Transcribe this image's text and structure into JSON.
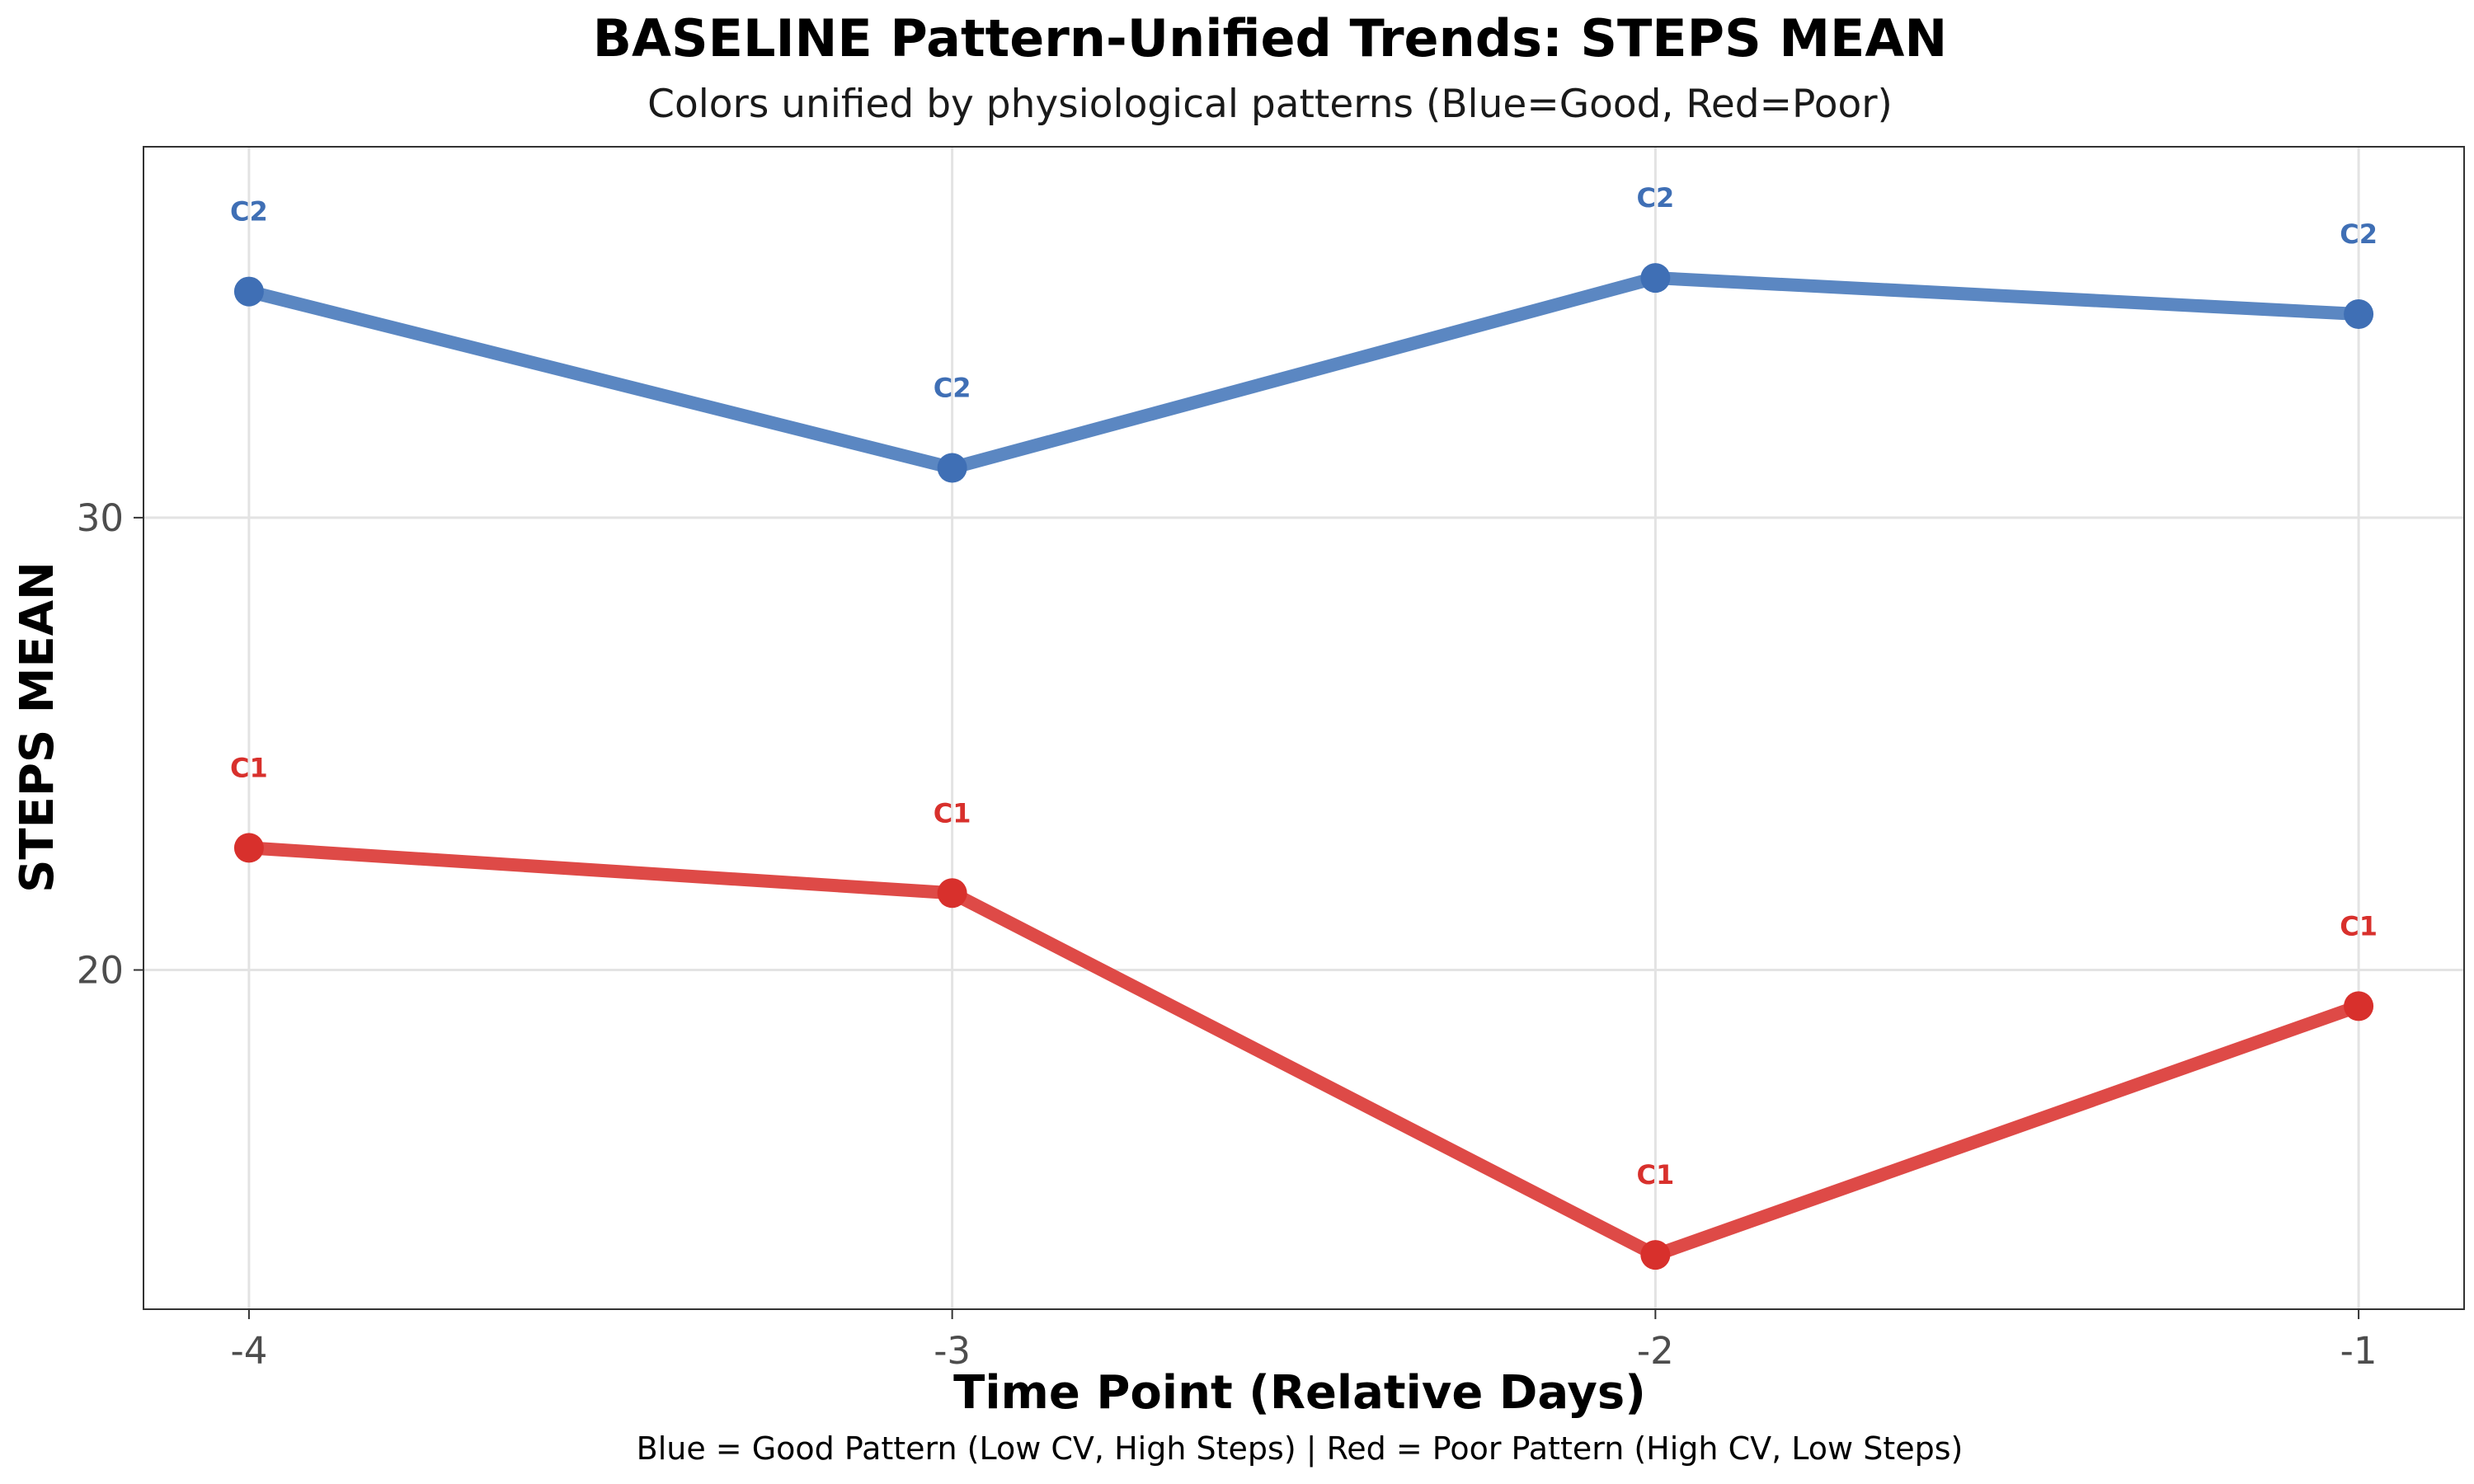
{
  "chart_data": {
    "type": "line",
    "title": "BASELINE Pattern-Unified Trends: STEPS MEAN",
    "subtitle": "Colors unified by physiological patterns (Blue=Good, Red=Poor)",
    "xlabel": "Time Point (Relative Days)",
    "ylabel": "STEPS MEAN",
    "caption": "Blue = Good Pattern (Low CV, High Steps) | Red = Poor Pattern (High CV, Low Steps)",
    "x": [
      -4,
      -3,
      -2,
      -1
    ],
    "x_tick_labels": [
      "-4",
      "-3",
      "-2",
      "-1"
    ],
    "y_ticks": [
      20,
      30
    ],
    "y_tick_labels": [
      "20",
      "30"
    ],
    "xlim": [
      -4.15,
      -0.85
    ],
    "ylim": [
      12.5,
      38.2
    ],
    "grid": true,
    "legend": "none",
    "series": [
      {
        "point_label": "C2",
        "color": "#5b87c2",
        "label_color": "#3f6fb5",
        "values": [
          35.0,
          31.1,
          35.3,
          34.5
        ]
      },
      {
        "point_label": "C1",
        "color": "#de4a47",
        "label_color": "#d8302c",
        "values": [
          22.7,
          21.7,
          13.7,
          19.2
        ]
      }
    ]
  }
}
